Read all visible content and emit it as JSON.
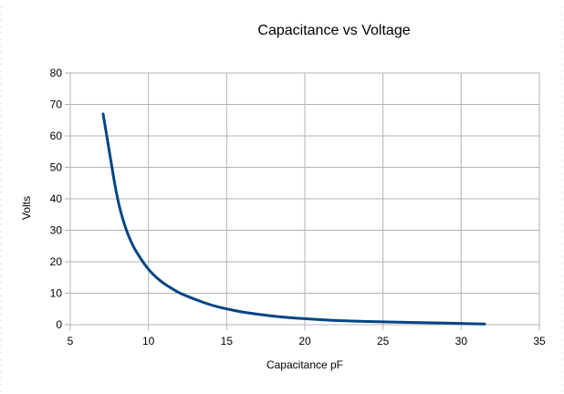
{
  "chart_data": {
    "type": "line",
    "title": "Capacitance vs Voltage",
    "xlabel": "Capacitance pF",
    "ylabel": "Volts",
    "xlim": [
      5,
      35
    ],
    "ylim": [
      0,
      80
    ],
    "x_ticks": [
      5,
      10,
      15,
      20,
      25,
      30,
      35
    ],
    "y_ticks": [
      0,
      10,
      20,
      30,
      40,
      50,
      60,
      70,
      80
    ],
    "grid": true,
    "legend": "none",
    "series": [
      {
        "color": "#004586",
        "points": [
          [
            7.1,
            67
          ],
          [
            7.5,
            55
          ],
          [
            8.0,
            40
          ],
          [
            8.5,
            31
          ],
          [
            9.0,
            25
          ],
          [
            9.5,
            21
          ],
          [
            10.0,
            17.5
          ],
          [
            10.5,
            15
          ],
          [
            11.0,
            13
          ],
          [
            11.5,
            11.5
          ],
          [
            12.0,
            10
          ],
          [
            13.0,
            8
          ],
          [
            14.0,
            6.2
          ],
          [
            15.0,
            5
          ],
          [
            16.0,
            4
          ],
          [
            17.0,
            3.3
          ],
          [
            18.0,
            2.7
          ],
          [
            19.0,
            2.2
          ],
          [
            20.0,
            1.9
          ],
          [
            22.0,
            1.3
          ],
          [
            24.0,
            1.0
          ],
          [
            26.0,
            0.8
          ],
          [
            28.0,
            0.6
          ],
          [
            30.0,
            0.4
          ],
          [
            31.5,
            0.2
          ]
        ]
      }
    ]
  }
}
